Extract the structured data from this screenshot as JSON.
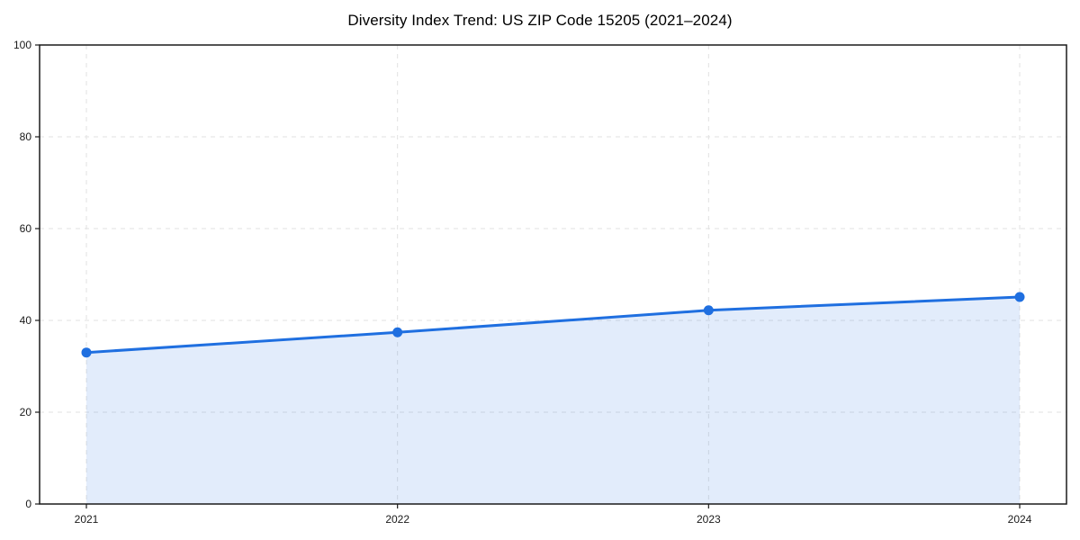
{
  "chart_data": {
    "type": "line",
    "title": "Diversity Index Trend: US ZIP Code 15205 (2021–2024)",
    "categories": [
      "2021",
      "2022",
      "2023",
      "2024"
    ],
    "series": [
      {
        "name": "Diversity Index",
        "values": [
          33.0,
          37.4,
          42.2,
          45.1
        ]
      }
    ],
    "xlabel": "",
    "ylabel": "",
    "ylim": [
      0,
      100
    ],
    "yticks": [
      0,
      20,
      40,
      60,
      80,
      100
    ],
    "ytick_labels": [
      "0",
      "20",
      "40",
      "60",
      "80",
      "100"
    ],
    "grid": true,
    "grid_style": "dashed",
    "legend_position": "none",
    "marker": "circle",
    "area_fill": true,
    "colors": {
      "line": "#1f6fe0",
      "area_opacity": 0.13,
      "grid": "#e2e2e2",
      "axis": "#1a1a1a",
      "text": "#1a1a1a",
      "background": "#ffffff"
    }
  }
}
